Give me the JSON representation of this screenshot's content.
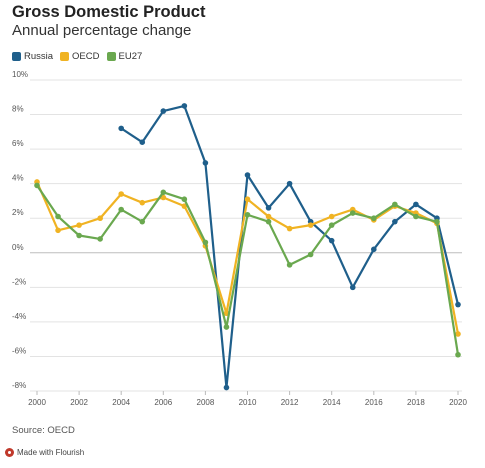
{
  "title": "Gross Domestic Product",
  "subtitle": "Annual percentage change",
  "source": "Source: OECD",
  "flourish_label": "Made with Flourish",
  "chart_data": {
    "type": "line",
    "title": "Gross Domestic Product",
    "subtitle": "Annual percentage change",
    "xlabel": "",
    "ylabel": "",
    "x": [
      2000,
      2001,
      2002,
      2003,
      2004,
      2005,
      2006,
      2007,
      2008,
      2009,
      2010,
      2011,
      2012,
      2013,
      2014,
      2015,
      2016,
      2017,
      2018,
      2019,
      2020
    ],
    "xticks": [
      "2000",
      "2002",
      "2004",
      "2006",
      "2008",
      "2010",
      "2012",
      "2014",
      "2016",
      "2018",
      "2020"
    ],
    "xtick_values": [
      2000,
      2002,
      2004,
      2006,
      2008,
      2010,
      2012,
      2014,
      2016,
      2018,
      2020
    ],
    "yticks": [
      "10%",
      "8%",
      "6%",
      "4%",
      "2%",
      "0%",
      "-2%",
      "-4%",
      "-6%",
      "-8%"
    ],
    "ytick_values": [
      10,
      8,
      6,
      4,
      2,
      0,
      -2,
      -4,
      -6,
      -8
    ],
    "xlim": [
      2000,
      2020
    ],
    "ylim": [
      -8,
      10
    ],
    "grid": true,
    "legend_position": "top-left",
    "series": [
      {
        "name": "Russia",
        "color": "#1f5f8b",
        "values": [
          null,
          null,
          null,
          null,
          7.2,
          6.4,
          8.2,
          8.5,
          5.2,
          -7.8,
          4.5,
          2.6,
          4.0,
          1.8,
          0.7,
          -2.0,
          0.2,
          1.8,
          2.8,
          2.0,
          -3.0
        ]
      },
      {
        "name": "OECD",
        "color": "#f0b323",
        "values": [
          4.1,
          1.3,
          1.6,
          2.0,
          3.4,
          2.9,
          3.2,
          2.7,
          0.4,
          -3.5,
          3.1,
          2.1,
          1.4,
          1.6,
          2.1,
          2.5,
          1.9,
          2.7,
          2.3,
          1.7,
          -4.7
        ]
      },
      {
        "name": "EU27",
        "color": "#6aa84f",
        "values": [
          3.9,
          2.1,
          1.0,
          0.8,
          2.5,
          1.8,
          3.5,
          3.1,
          0.6,
          -4.3,
          2.2,
          1.8,
          -0.7,
          -0.1,
          1.6,
          2.3,
          2.0,
          2.8,
          2.1,
          1.8,
          -5.9
        ]
      }
    ]
  }
}
